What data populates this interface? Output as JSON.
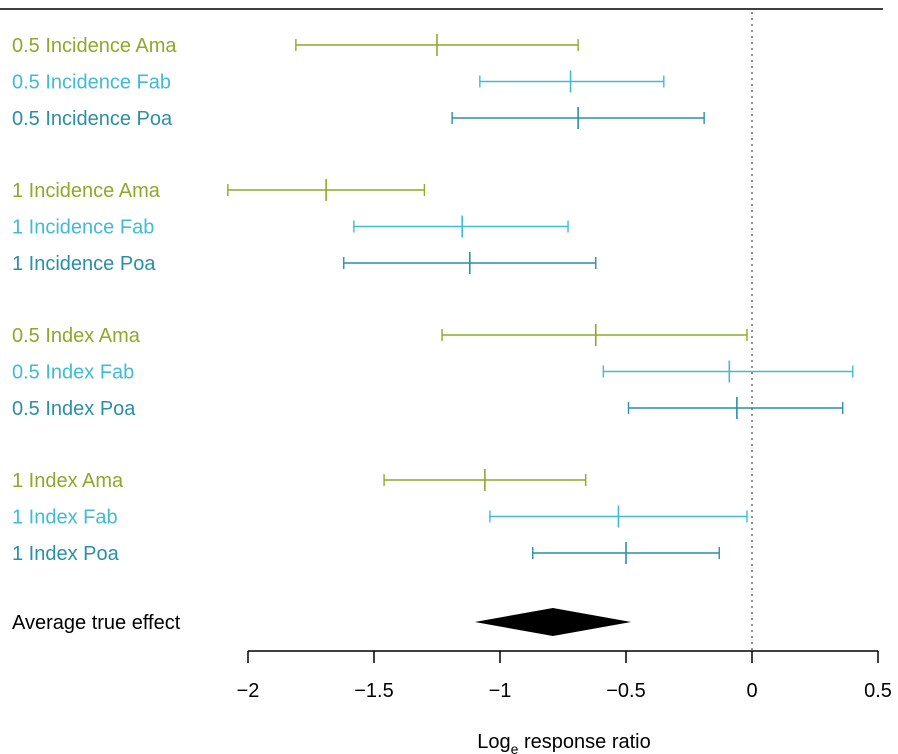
{
  "chart_data": {
    "type": "forest",
    "xlabel_main": "Log",
    "xlabel_sub": "e",
    "xlabel_rest": " response ratio",
    "xlim": [
      -2,
      0.5
    ],
    "xticks": [
      -2,
      -1.5,
      -1,
      -0.5,
      0,
      0.5
    ],
    "xtick_labels": [
      "−2",
      "−1.5",
      "−1",
      "−0.5",
      "0",
      "0.5"
    ],
    "reference_line": 0,
    "colors": {
      "Ama": "#8fa82a",
      "Fab": "#3fbcd4",
      "Poa": "#2a8fa8"
    },
    "rows": [
      {
        "label": "0.5 Incidence Ama",
        "group": "Ama",
        "estimate": -1.25,
        "lower": -1.81,
        "upper": -0.69
      },
      {
        "label": "0.5 Incidence Fab",
        "group": "Fab",
        "estimate": -0.72,
        "lower": -1.08,
        "upper": -0.35
      },
      {
        "label": "0.5 Incidence Poa",
        "group": "Poa",
        "estimate": -0.69,
        "lower": -1.19,
        "upper": -0.19
      },
      {
        "label": "1 Incidence Ama",
        "group": "Ama",
        "estimate": -1.69,
        "lower": -2.08,
        "upper": -1.3
      },
      {
        "label": "1 Incidence Fab",
        "group": "Fab",
        "estimate": -1.15,
        "lower": -1.58,
        "upper": -0.73
      },
      {
        "label": "1 Incidence Poa",
        "group": "Poa",
        "estimate": -1.12,
        "lower": -1.62,
        "upper": -0.62
      },
      {
        "label": "0.5 Index Ama",
        "group": "Ama",
        "estimate": -0.62,
        "lower": -1.23,
        "upper": -0.02
      },
      {
        "label": "0.5 Index Fab",
        "group": "Fab",
        "estimate": -0.09,
        "lower": -0.59,
        "upper": 0.4
      },
      {
        "label": "0.5 Index Poa",
        "group": "Poa",
        "estimate": -0.06,
        "lower": -0.49,
        "upper": 0.36
      },
      {
        "label": "1 Index Ama",
        "group": "Ama",
        "estimate": -1.06,
        "lower": -1.46,
        "upper": -0.66
      },
      {
        "label": "1 Index Fab",
        "group": "Fab",
        "estimate": -0.53,
        "lower": -1.04,
        "upper": -0.02
      },
      {
        "label": "1 Index Poa",
        "group": "Poa",
        "estimate": -0.5,
        "lower": -0.87,
        "upper": -0.13
      }
    ],
    "summary": {
      "label": "Average true effect",
      "estimate": -0.79,
      "lower": -1.1,
      "upper": -0.48
    }
  }
}
